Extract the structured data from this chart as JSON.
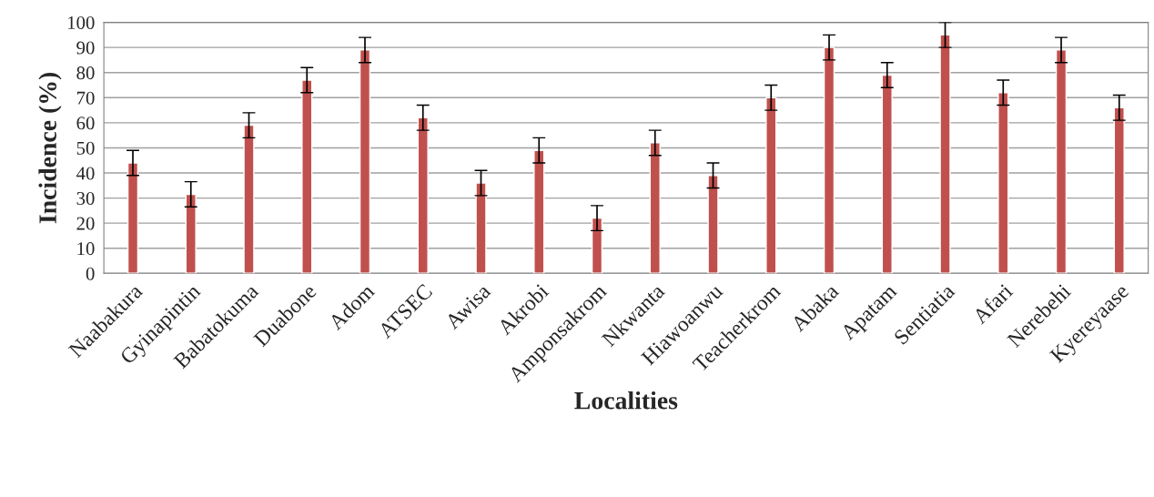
{
  "chart_data": {
    "type": "bar",
    "xlabel": "Localities",
    "ylabel": "Incidence (%)",
    "categories": [
      "Naabakura",
      "Gyinapintin",
      "Babatokuma",
      "Duabone",
      "Adom",
      "ATSEC",
      "Awisa",
      "Akrobi",
      "Amponsakrom",
      "Nkwanta",
      "Hiawoanwu",
      "Teacherkrom",
      "Abaka",
      "Apatam",
      "Sentiatia",
      "Afari",
      "Nerebehi",
      "Kyereyaase"
    ],
    "values": [
      44,
      31.5,
      59,
      77,
      89,
      62,
      36,
      49,
      22,
      52,
      39,
      70,
      90,
      79,
      95,
      72,
      89,
      66
    ],
    "errors": [
      5,
      5,
      5,
      5,
      5,
      5,
      5,
      5,
      5,
      5,
      5,
      5,
      5,
      5,
      5,
      5,
      5,
      5
    ],
    "color": "#c0504d",
    "ylim": [
      0,
      100
    ],
    "yticks": [
      0,
      10,
      20,
      30,
      40,
      50,
      60,
      70,
      80,
      90,
      100
    ],
    "grid": "y"
  }
}
